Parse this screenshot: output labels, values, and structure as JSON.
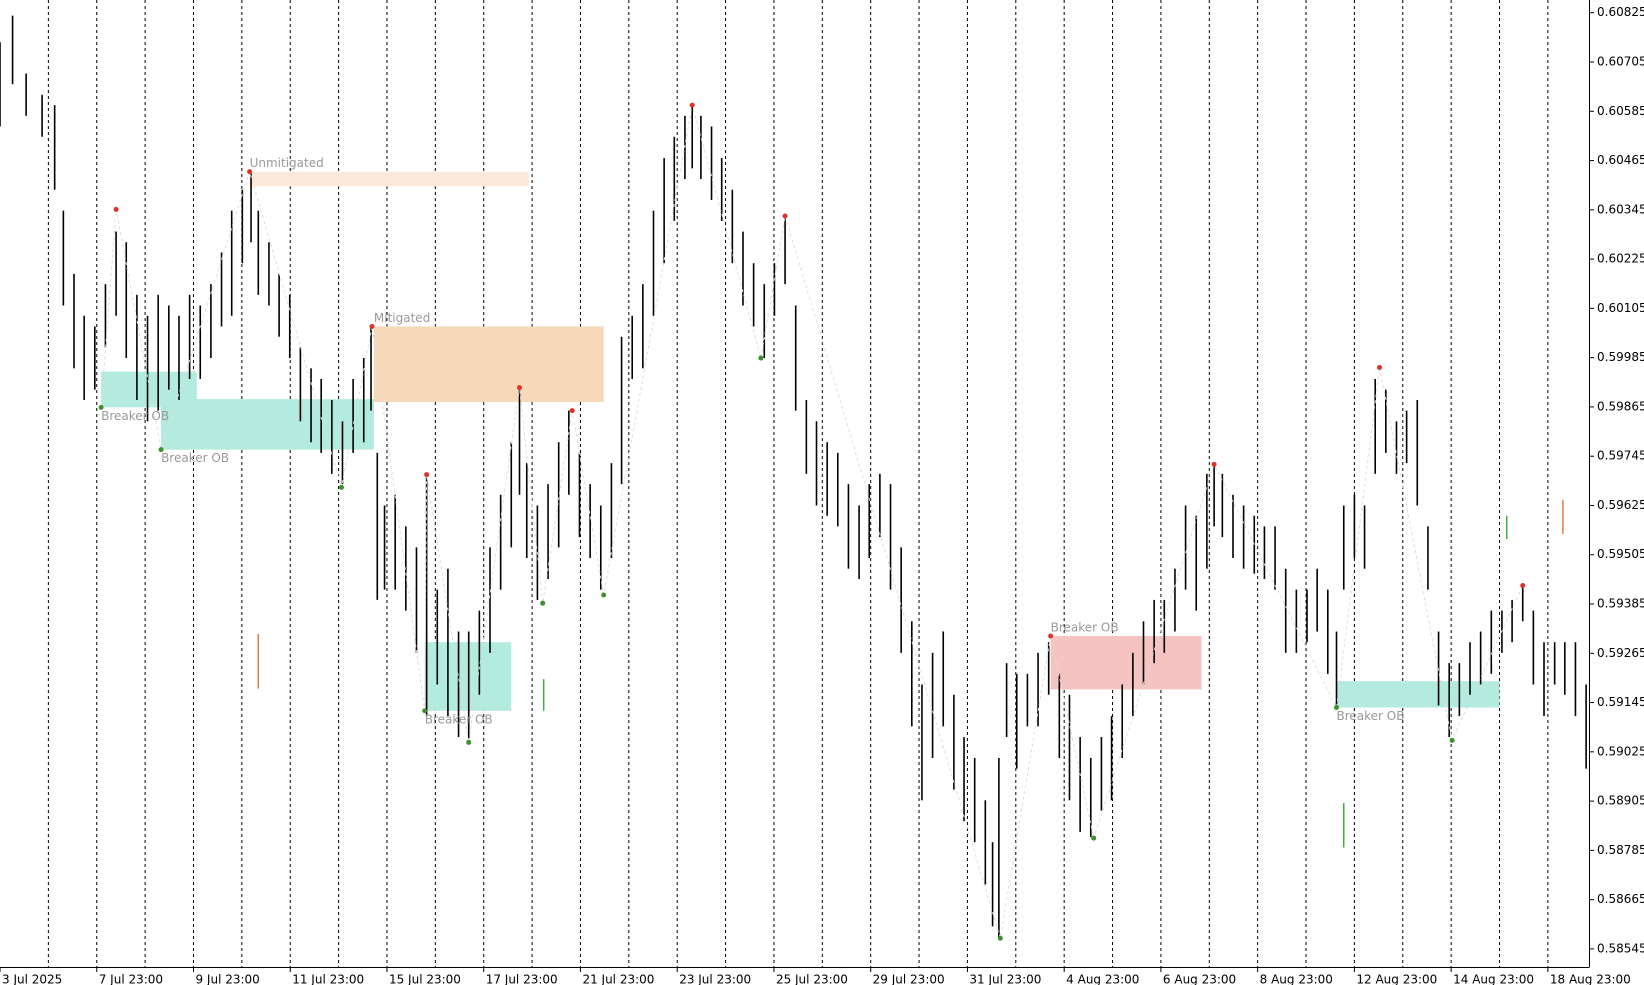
{
  "chart_data": {
    "type": "hilo",
    "bar_color": "#000000",
    "grid": true,
    "xlim": [
      0,
      32.85
    ],
    "ylim": [
      0.58501,
      0.60856
    ],
    "xticks": [
      {
        "value": 0,
        "label": "3 Jul 2025"
      },
      {
        "value": 2,
        "label": "7 Jul 23:00"
      },
      {
        "value": 4,
        "label": "9 Jul 23:00"
      },
      {
        "value": 6,
        "label": "11 Jul 23:00"
      },
      {
        "value": 8,
        "label": "15 Jul 23:00"
      },
      {
        "value": 10,
        "label": "17 Jul 23:00"
      },
      {
        "value": 12,
        "label": "21 Jul 23:00"
      },
      {
        "value": 14,
        "label": "23 Jul 23:00"
      },
      {
        "value": 16,
        "label": "25 Jul 23:00"
      },
      {
        "value": 18,
        "label": "29 Jul 23:00"
      },
      {
        "value": 20,
        "label": "31 Jul 23:00"
      },
      {
        "value": 22,
        "label": "4 Aug 23:00"
      },
      {
        "value": 24,
        "label": "6 Aug 23:00"
      },
      {
        "value": 26,
        "label": "8 Aug 23:00"
      },
      {
        "value": 28,
        "label": "12 Aug 23:00"
      },
      {
        "value": 30,
        "label": "14 Aug 23:00"
      },
      {
        "value": 32,
        "label": "18 Aug 23:00"
      }
    ],
    "xminor": [
      1,
      3,
      5,
      7,
      9,
      11,
      13,
      15,
      17,
      19,
      21,
      23,
      25,
      27,
      29,
      31
    ],
    "yticks": [
      0.60825,
      0.60705,
      0.60585,
      0.60465,
      0.60345,
      0.60225,
      0.60105,
      0.59985,
      0.59865,
      0.59745,
      0.59625,
      0.59505,
      0.59385,
      0.59265,
      0.59145,
      0.59025,
      0.58905,
      0.58785,
      0.58665,
      0.58545
    ],
    "x": [
      0,
      0.26,
      0.54,
      0.87,
      1.13,
      1.31,
      1.53,
      1.74,
      1.96,
      2.18,
      2.4,
      2.61,
      2.83,
      3.05,
      3.27,
      3.49,
      3.7,
      3.92,
      4.14,
      4.36,
      4.58,
      4.79,
      5.01,
      5.19,
      5.34,
      5.56,
      5.77,
      5.99,
      6.21,
      6.43,
      6.64,
      6.86,
      7.08,
      7.3,
      7.52,
      7.67,
      7.8,
      7.95,
      8.17,
      8.39,
      8.61,
      8.82,
      9.04,
      9.26,
      9.48,
      9.69,
      9.91,
      10.13,
      10.35,
      10.57,
      10.74,
      10.89,
      11.11,
      11.33,
      11.55,
      11.76,
      11.98,
      12.2,
      12.42,
      12.64,
      12.85,
      13.07,
      13.29,
      13.51,
      13.73,
      13.94,
      14.16,
      14.31,
      14.49,
      14.71,
      14.92,
      15.14,
      15.36,
      15.58,
      15.8,
      16.01,
      16.23,
      16.45,
      16.67,
      16.88,
      17.1,
      17.32,
      17.54,
      17.76,
      17.97,
      18.19,
      18.41,
      18.63,
      18.85,
      19.06,
      19.28,
      19.5,
      19.72,
      19.93,
      20.15,
      20.37,
      20.52,
      20.65,
      20.81,
      21.02,
      21.24,
      21.46,
      21.68,
      21.9,
      22.11,
      22.33,
      22.55,
      22.77,
      22.98,
      23.2,
      23.42,
      23.64,
      23.86,
      24.07,
      24.29,
      24.51,
      24.73,
      24.95,
      25.1,
      25.27,
      25.49,
      25.71,
      25.93,
      26.14,
      26.36,
      26.58,
      26.8,
      27.02,
      27.23,
      27.45,
      27.63,
      27.78,
      28.0,
      28.21,
      28.43,
      28.65,
      28.87,
      29.08,
      29.3,
      29.52,
      29.74,
      29.96,
      30.17,
      30.39,
      30.61,
      30.83,
      31.05,
      31.26,
      31.48,
      31.7,
      31.92,
      32.14,
      32.35,
      32.57,
      32.79
    ],
    "high": [
      0.60753,
      0.60818,
      0.60677,
      0.60625,
      0.606,
      0.60343,
      0.60189,
      0.60087,
      0.60061,
      0.60164,
      0.60292,
      0.60266,
      0.60138,
      0.60087,
      0.60138,
      0.60112,
      0.60087,
      0.60138,
      0.60112,
      0.60164,
      0.60241,
      0.60343,
      0.60394,
      0.60433,
      0.60343,
      0.60266,
      0.60189,
      0.60138,
      0.6001,
      0.59959,
      0.59933,
      0.59882,
      0.5983,
      0.59933,
      0.59984,
      0.60061,
      0.59753,
      0.59625,
      0.59651,
      0.59574,
      0.59523,
      0.59702,
      0.5942,
      0.59471,
      0.59318,
      0.59318,
      0.59369,
      0.59523,
      0.59651,
      0.59779,
      0.59907,
      0.59728,
      0.59625,
      0.59677,
      0.59779,
      0.59856,
      0.59753,
      0.59677,
      0.59625,
      0.59728,
      0.60036,
      0.60087,
      0.60164,
      0.60343,
      0.60471,
      0.60523,
      0.60574,
      0.606,
      0.60574,
      0.60548,
      0.60471,
      0.60394,
      0.60292,
      0.60215,
      0.60164,
      0.60215,
      0.6033,
      0.60112,
      0.59882,
      0.5983,
      0.59779,
      0.59753,
      0.59677,
      0.59625,
      0.59677,
      0.59702,
      0.59677,
      0.59523,
      0.59343,
      0.59189,
      0.59266,
      0.59318,
      0.59164,
      0.59061,
      0.5901,
      0.58907,
      0.58805,
      0.5901,
      0.59241,
      0.59215,
      0.59215,
      0.59266,
      0.59292,
      0.59215,
      0.59164,
      0.59061,
      0.5901,
      0.59061,
      0.59112,
      0.59189,
      0.59266,
      0.59343,
      0.59395,
      0.59395,
      0.59471,
      0.59625,
      0.596,
      0.59702,
      0.59728,
      0.59702,
      0.59651,
      0.59625,
      0.596,
      0.59574,
      0.59574,
      0.59471,
      0.5942,
      0.5942,
      0.59471,
      0.5942,
      0.59318,
      0.59625,
      0.59651,
      0.59625,
      0.59933,
      0.59907,
      0.5983,
      0.59856,
      0.59882,
      0.59574,
      0.59318,
      0.59241,
      0.59241,
      0.59292,
      0.59318,
      0.59369,
      0.59369,
      0.59395,
      0.59433,
      0.59369,
      0.59292,
      0.59292,
      0.59292,
      0.59292,
      0.59189
    ],
    "low": [
      0.60548,
      0.60651,
      0.60574,
      0.60523,
      0.60394,
      0.60112,
      0.59959,
      0.59882,
      0.59907,
      0.6001,
      0.60087,
      0.59984,
      0.59882,
      0.5983,
      0.59856,
      0.59907,
      0.59882,
      0.59933,
      0.59933,
      0.59984,
      0.60061,
      0.60087,
      0.60215,
      0.60266,
      0.60138,
      0.60112,
      0.60036,
      0.59984,
      0.5983,
      0.59779,
      0.59753,
      0.59702,
      0.59677,
      0.59753,
      0.59779,
      0.59856,
      0.59395,
      0.5942,
      0.5942,
      0.59369,
      0.59266,
      0.59112,
      0.59189,
      0.59112,
      0.59061,
      0.59048,
      0.59164,
      0.59266,
      0.5942,
      0.59523,
      0.59651,
      0.59497,
      0.59395,
      0.59446,
      0.59523,
      0.59651,
      0.59548,
      0.59497,
      0.5942,
      0.59497,
      0.59677,
      0.59933,
      0.59959,
      0.60087,
      0.60215,
      0.60318,
      0.6042,
      0.60446,
      0.6042,
      0.60369,
      0.60318,
      0.60215,
      0.60112,
      0.60061,
      0.59984,
      0.60087,
      0.60164,
      0.59856,
      0.59702,
      0.59625,
      0.596,
      0.59574,
      0.59471,
      0.59446,
      0.59497,
      0.59548,
      0.5942,
      0.59266,
      0.59087,
      0.58907,
      0.5901,
      0.59087,
      0.58933,
      0.58856,
      0.58805,
      0.58702,
      0.586,
      0.58574,
      0.59061,
      0.58984,
      0.59087,
      0.59087,
      0.59164,
      0.5901,
      0.58907,
      0.5883,
      0.58818,
      0.58882,
      0.58907,
      0.5901,
      0.59112,
      0.59189,
      0.59241,
      0.59266,
      0.59318,
      0.5942,
      0.59369,
      0.59471,
      0.59574,
      0.59548,
      0.59497,
      0.59471,
      0.59459,
      0.59446,
      0.5942,
      0.59266,
      0.59266,
      0.59292,
      0.59318,
      0.59215,
      0.59138,
      0.5942,
      0.59497,
      0.59471,
      0.59702,
      0.59753,
      0.59702,
      0.59728,
      0.59625,
      0.5942,
      0.59138,
      0.59061,
      0.59112,
      0.59164,
      0.59189,
      0.59215,
      0.59266,
      0.59292,
      0.59343,
      0.59189,
      0.59112,
      0.59189,
      0.59164,
      0.59112,
      0.58984
    ],
    "zones": [
      {
        "label": "Breaker OB",
        "color": "#b3ebdf",
        "x": [
          2.09,
          4.07
        ],
        "y": [
          0.59864,
          0.59951
        ],
        "label_pos": "below"
      },
      {
        "label": "Breaker OB",
        "color": "#b3ebdf",
        "x": [
          3.33,
          7.73
        ],
        "y": [
          0.59761,
          0.59884
        ],
        "label_pos": "below"
      },
      {
        "label": "Unmitigated",
        "color": "#fde9db",
        "x": [
          5.16,
          10.94
        ],
        "y": [
          0.60402,
          0.60438
        ],
        "label_pos": "above"
      },
      {
        "label": "Mitigated",
        "color": "#f7d8b8",
        "x": [
          7.73,
          12.48
        ],
        "y": [
          0.59877,
          0.60061
        ],
        "label_pos": "above"
      },
      {
        "label": "Breaker OB",
        "color": "#b3ebdf",
        "x": [
          8.78,
          10.57
        ],
        "y": [
          0.59125,
          0.59292
        ],
        "label_pos": "below"
      },
      {
        "label": "Breaker OB",
        "color": "#f6c3c3",
        "x": [
          21.72,
          24.84
        ],
        "y": [
          0.59177,
          0.59307
        ],
        "label_pos": "above"
      },
      {
        "label": "Breaker OB",
        "color": "#b3ebdf",
        "x": [
          27.63,
          31.0
        ],
        "y": [
          0.59133,
          0.59197
        ],
        "label_pos": "below"
      }
    ],
    "swings": {
      "x": [
        2.09,
        2.4,
        3.33,
        5.16,
        7.06,
        7.69,
        8.78,
        8.82,
        9.69,
        10.74,
        11.22,
        11.83,
        12.48,
        14.31,
        15.73,
        16.23,
        20.68,
        21.72,
        22.61,
        25.1,
        27.63,
        28.52,
        30.02,
        31.48
      ],
      "y": [
        0.59864,
        0.60346,
        0.59761,
        0.60438,
        0.59669,
        0.60061,
        0.59125,
        0.597,
        0.59048,
        0.59912,
        0.59387,
        0.59856,
        0.59407,
        0.606,
        0.59984,
        0.6033,
        0.58571,
        0.59307,
        0.58815,
        0.59725,
        0.59133,
        0.59961,
        0.59053,
        0.5943
      ],
      "colors": [
        "#3f8f2f",
        "#e0302a",
        "#3f8f2f",
        "#e0302a",
        "#3f8f2f",
        "#e0302a",
        "#3f8f2f",
        "#e0302a",
        "#3f8f2f",
        "#e0302a",
        "#3f8f2f",
        "#e0302a",
        "#3f8f2f",
        "#e0302a",
        "#3f8f2f",
        "#e0302a",
        "#3f8f2f",
        "#e0302a",
        "#3f8f2f",
        "#e0302a",
        "#3f8f2f",
        "#e0302a",
        "#3f8f2f",
        "#e0302a"
      ],
      "line_color": "#dddddd"
    },
    "markers": [
      {
        "x": 5.34,
        "y": [
          0.59179,
          0.59312
        ],
        "color": "#e07b39"
      },
      {
        "x": 11.24,
        "y": [
          0.59125,
          0.59202
        ],
        "color": "#3fae3f"
      },
      {
        "x": 27.78,
        "y": [
          0.58792,
          0.589
        ],
        "color": "#3fae3f"
      },
      {
        "x": 31.15,
        "y": [
          0.59543,
          0.596
        ],
        "color": "#3fae3f"
      },
      {
        "x": 32.31,
        "y": [
          0.59556,
          0.59638
        ],
        "color": "#e07b39"
      }
    ]
  }
}
